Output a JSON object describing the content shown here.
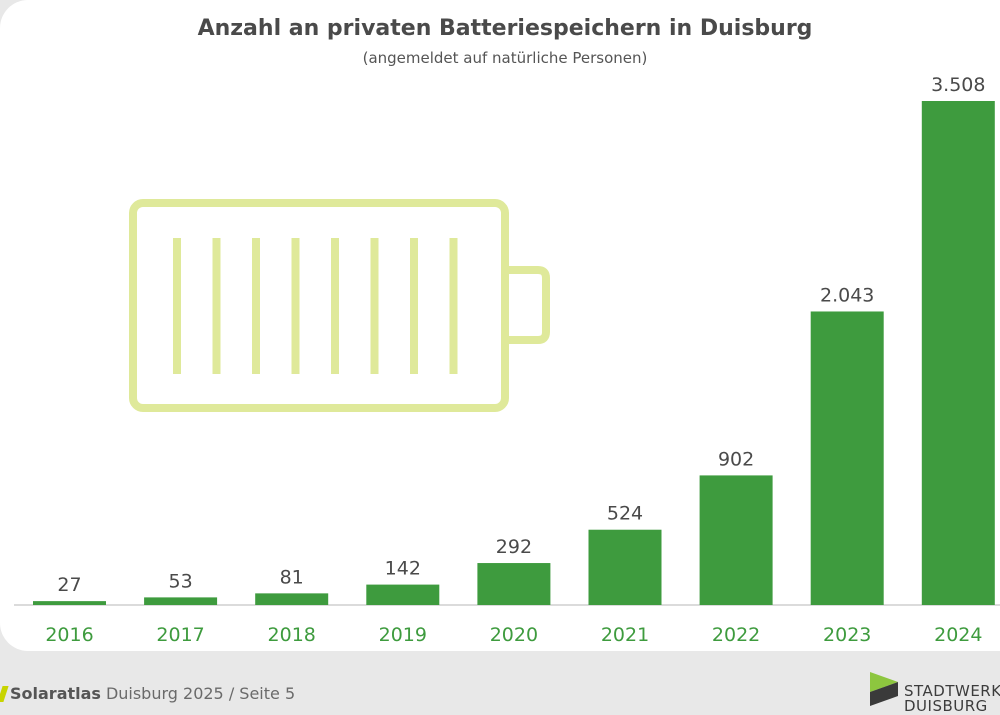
{
  "chart_data": {
    "type": "bar",
    "title": "Anzahl an privaten Batteriespeichern in Duisburg",
    "subtitle": "(angemeldet auf natürliche Personen)",
    "categories": [
      "2016",
      "2017",
      "2018",
      "2019",
      "2020",
      "2021",
      "2022",
      "2023",
      "2024"
    ],
    "values": [
      27,
      53,
      81,
      142,
      292,
      524,
      902,
      2043,
      3508
    ],
    "value_labels": [
      "27",
      "53",
      "81",
      "142",
      "292",
      "524",
      "902",
      "2.043",
      "3.508"
    ],
    "ylim": [
      0,
      3508
    ],
    "grid": false,
    "bar_color": "#3e9b3e",
    "category_label_color": "#3e9b3e"
  },
  "decoration": {
    "icon": "battery-icon",
    "color": "#dfe99a",
    "level_cells": 8
  },
  "footer": {
    "brand": "Solaratlas",
    "text": "Duisburg 2025 / Seite 5",
    "logo_line1": "STADTWERKE",
    "logo_line2": "DUISBURG"
  }
}
